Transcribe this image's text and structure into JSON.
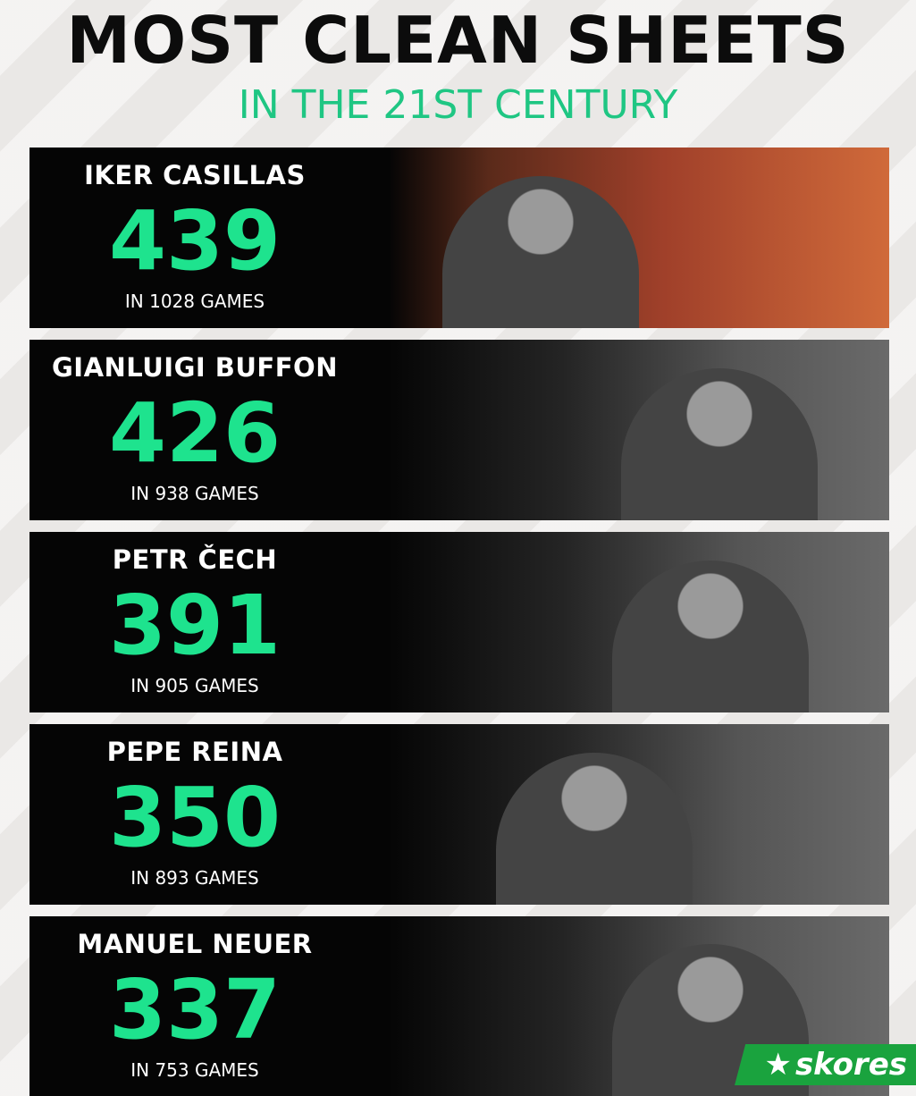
{
  "title": "MOST CLEAN SHEETS",
  "subtitle": "IN THE 21ST CENTURY",
  "accent_color": "#1ee38e",
  "players": [
    {
      "name": "IKER CASILLAS",
      "clean_sheets": "439",
      "games": "IN 1028 GAMES"
    },
    {
      "name": "GIANLUIGI BUFFON",
      "clean_sheets": "426",
      "games": "IN 938 GAMES"
    },
    {
      "name": "PETR ČECH",
      "clean_sheets": "391",
      "games": "IN 905 GAMES"
    },
    {
      "name": "PEPE REINA",
      "clean_sheets": "350",
      "games": "IN 893 GAMES"
    },
    {
      "name": "MANUEL NEUER",
      "clean_sheets": "337",
      "games": "IN 753 GAMES"
    }
  ],
  "logo": {
    "text": "skores",
    "icon": "star-icon",
    "color": "#1aa33e"
  }
}
